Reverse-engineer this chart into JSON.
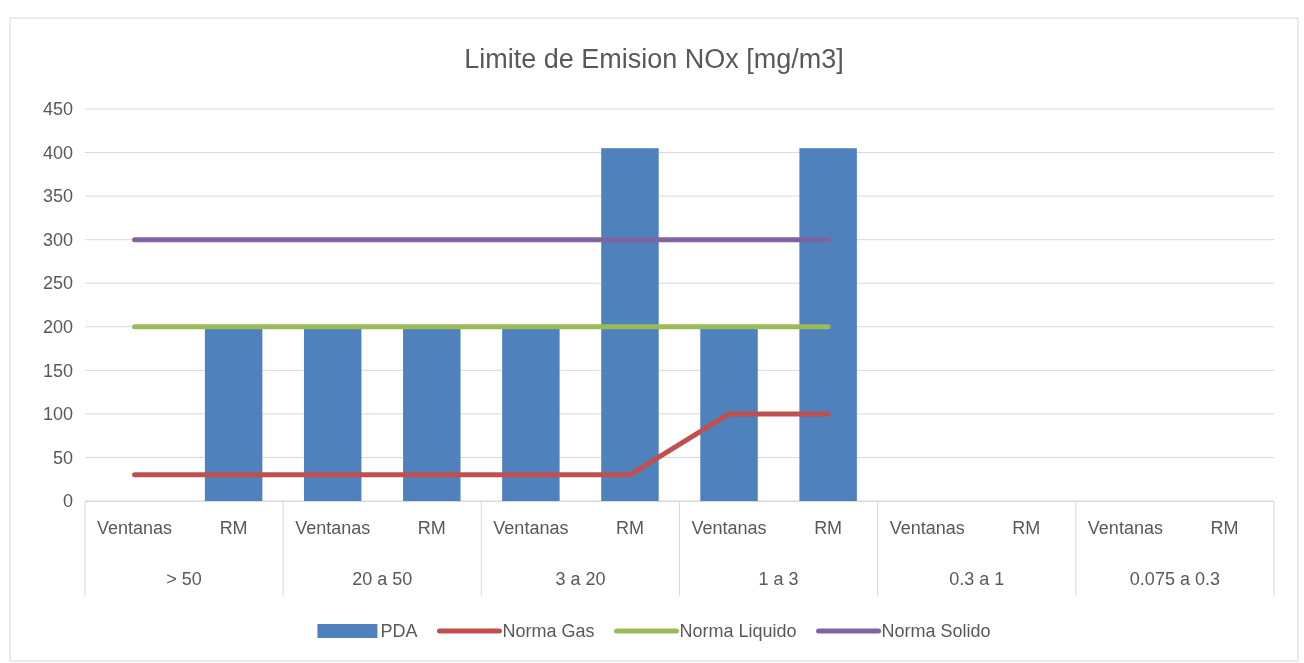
{
  "chart_data": {
    "type": "bar",
    "title": "Limite de Emision NOx [mg/m3]",
    "categories": [
      "Ventanas",
      "RM",
      "Ventanas",
      "RM",
      "Ventanas",
      "RM",
      "Ventanas",
      "RM",
      "Ventanas",
      "RM",
      "Ventanas",
      "RM"
    ],
    "series": [
      {
        "name": "PDA",
        "color": "#4f81bd",
        "values": [
          null,
          200,
          200,
          200,
          200,
          405,
          200,
          405,
          null,
          null,
          null,
          null
        ]
      },
      {
        "name": "Norma Gas",
        "type": "line",
        "color": "#c0504d",
        "values": [
          30,
          30,
          30,
          30,
          30,
          30,
          100,
          100,
          null,
          null,
          null,
          null
        ]
      },
      {
        "name": "Norma Liquido",
        "type": "line",
        "color": "#9bbb59",
        "values": [
          200,
          200,
          200,
          200,
          200,
          200,
          200,
          200,
          null,
          null,
          null,
          null
        ]
      },
      {
        "name": "Norma Solido",
        "type": "line",
        "color": "#8064a2",
        "values": [
          300,
          300,
          300,
          300,
          300,
          300,
          300,
          300,
          null,
          null,
          null,
          null
        ]
      }
    ],
    "annotations": [
      "> 50",
      "20 a 50",
      "3 a 20",
      "1 a 3",
      "0.3 a 1",
      "0.075 a 0.3"
    ],
    "ylim": [
      0,
      450
    ],
    "yticks": [
      0,
      50,
      100,
      150,
      200,
      250,
      300,
      350,
      400,
      450
    ],
    "grid": "y",
    "legend": "bottom",
    "marker": "none",
    "line_style": "solid"
  }
}
